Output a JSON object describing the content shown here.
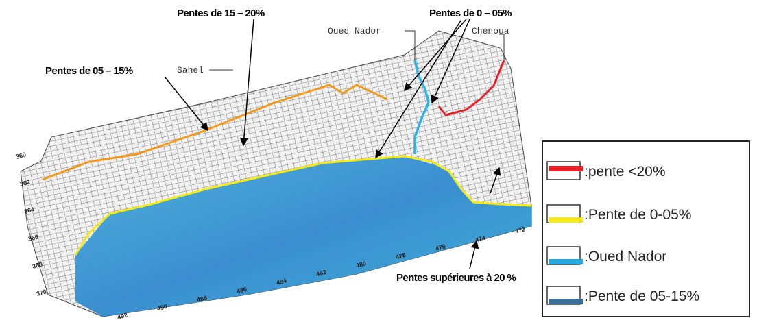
{
  "annotations": {
    "slope_15_20": "Pentes de 15 – 20%",
    "slope_0_05": "Pentes de 0 – 05%",
    "slope_05_15": "Pentes de 05 – 15%",
    "slope_above_20": "Pentes supérieures à 20 %",
    "oued_nador": "Oued Nador",
    "chenoua": "Chenoua",
    "sahel": "Sahel"
  },
  "axis_labels": {
    "left": [
      360,
      362,
      364,
      366,
      368,
      370
    ],
    "bottom": [
      492,
      490,
      488,
      486,
      484,
      482,
      480,
      478,
      476,
      474,
      472
    ]
  },
  "legend": [
    {
      "label": ":pente  <20%",
      "color": "#e8202a"
    },
    {
      "label": ":Pente de 0-05%",
      "color": "#f5ea14"
    },
    {
      "label": " :Oued Nador",
      "color": "#29a8e0"
    },
    {
      "label": ":Pente de 05-15%",
      "color": "#3d6e96"
    }
  ]
}
